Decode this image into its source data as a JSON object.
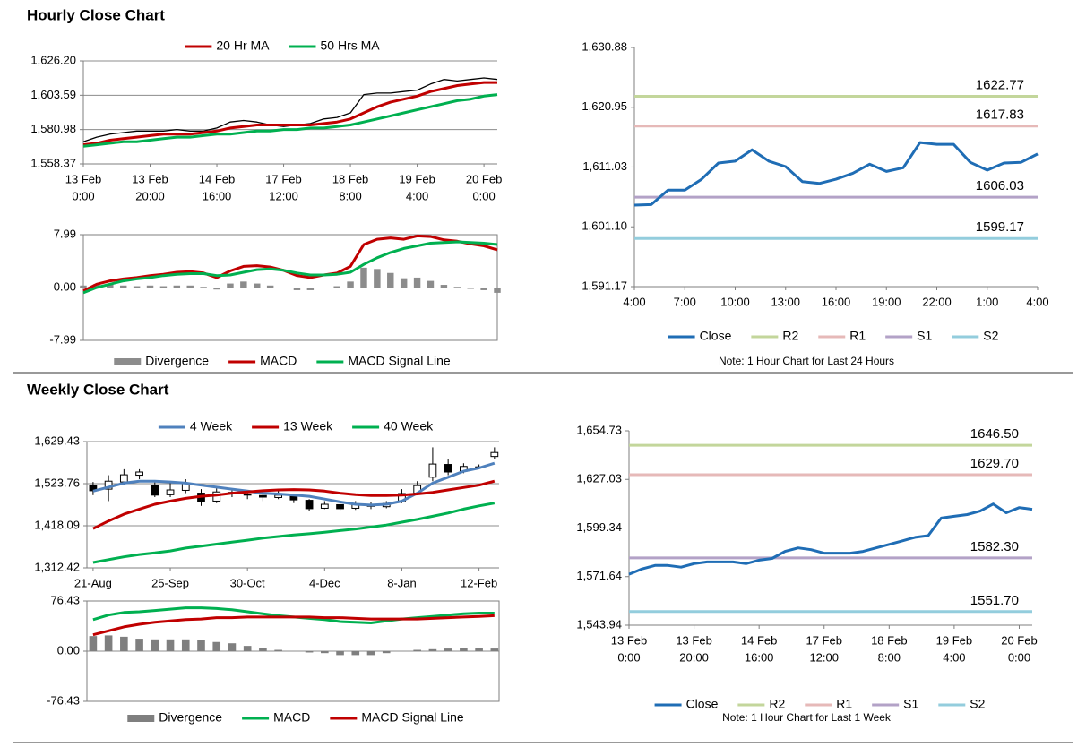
{
  "headings": [
    "Hourly Close Chart",
    "Weekly Close Chart"
  ],
  "chart_data": [
    {
      "type": "line",
      "xlim": [
        0,
        31
      ],
      "ylim": [
        1558.37,
        1626.2
      ],
      "grid": true,
      "yticks": [
        {
          "value": 1558.37,
          "label": "1,558.37"
        },
        {
          "value": 1580.98,
          "label": "1,580.98"
        },
        {
          "value": 1603.59,
          "label": "1,603.59"
        },
        {
          "value": 1626.2,
          "label": "1,626.20"
        }
      ],
      "xticks": [
        {
          "value": 0,
          "label": [
            "13 Feb",
            "0:00"
          ]
        },
        {
          "value": 5,
          "label": [
            "13 Feb",
            "20:00"
          ]
        },
        {
          "value": 10,
          "label": [
            "14 Feb",
            "16:00"
          ]
        },
        {
          "value": 15,
          "label": [
            "17 Feb",
            "12:00"
          ]
        },
        {
          "value": 20,
          "label": [
            "18 Feb",
            "8:00"
          ]
        },
        {
          "value": 25,
          "label": [
            "19 Feb",
            "4:00"
          ]
        },
        {
          "value": 30,
          "label": [
            "20 Feb",
            "0:00"
          ]
        }
      ],
      "series": [
        {
          "color": "#000000",
          "values": [
            1573,
            1576,
            1578,
            1579,
            1580,
            1580,
            1580,
            1581,
            1580,
            1580,
            1582,
            1586,
            1587,
            1586,
            1584,
            1583,
            1584,
            1585,
            1588,
            1589,
            1592,
            1604,
            1605,
            1605,
            1606,
            1607,
            1611,
            1614,
            1613,
            1614,
            1615,
            1614
          ]
        },
        {
          "name": "20 Hr MA",
          "color": "#c00000",
          "values": [
            1571,
            1572,
            1574,
            1575,
            1576,
            1577,
            1578,
            1578,
            1578,
            1579,
            1580,
            1582,
            1583,
            1584,
            1584,
            1584,
            1584,
            1584,
            1585,
            1586,
            1588,
            1592,
            1596,
            1599,
            1601,
            1603,
            1606,
            1608,
            1610,
            1611,
            1612,
            1612
          ]
        },
        {
          "name": "50 Hrs MA",
          "color": "#00b050",
          "values": [
            1570,
            1571,
            1572,
            1573,
            1573,
            1574,
            1575,
            1576,
            1576,
            1577,
            1578,
            1578,
            1579,
            1580,
            1580,
            1581,
            1581,
            1582,
            1582,
            1583,
            1584,
            1586,
            1588,
            1590,
            1592,
            1594,
            1596,
            1598,
            1600,
            1601,
            1603,
            1604
          ]
        }
      ]
    },
    {
      "type": "combo",
      "xlim": [
        0,
        31
      ],
      "ylim": [
        -7.99,
        7.99
      ],
      "grid": false,
      "frame": true,
      "yticks": [
        -7.99,
        {
          "value": 0,
          "label": "0.00"
        },
        7.99
      ],
      "series": [
        {
          "name": "Divergence",
          "kind": "bar",
          "color": "#8c8c8c",
          "values": [
            0.3,
            0.5,
            0.5,
            0.3,
            0.2,
            0.3,
            0.2,
            0.3,
            0.3,
            0.1,
            -0.3,
            0.6,
            0.9,
            0.6,
            0.3,
            0,
            -0.4,
            -0.4,
            0,
            0.2,
            0.9,
            3,
            2.8,
            2.2,
            1.4,
            1.5,
            1,
            0.4,
            0.1,
            -0.2,
            -0.4,
            -0.8
          ]
        },
        {
          "name": "MACD",
          "kind": "line",
          "color": "#c00000",
          "values": [
            -0.5,
            0.5,
            1,
            1.3,
            1.5,
            1.8,
            2,
            2.3,
            2.4,
            2.2,
            1.5,
            2.5,
            3.2,
            3.3,
            3.1,
            2.6,
            1.8,
            1.5,
            1.9,
            2.2,
            3.2,
            6.5,
            7.3,
            7.5,
            7.3,
            7.8,
            7.7,
            7.2,
            7,
            6.6,
            6.3,
            5.7
          ]
        },
        {
          "name": "MACD Signal Line",
          "kind": "line",
          "color": "#00b050",
          "values": [
            -0.8,
            0,
            0.5,
            1,
            1.3,
            1.5,
            1.8,
            2,
            2.1,
            2.1,
            1.8,
            1.9,
            2.3,
            2.7,
            2.8,
            2.6,
            2.2,
            1.9,
            1.9,
            2,
            2.3,
            3.5,
            4.5,
            5.3,
            5.9,
            6.3,
            6.7,
            6.8,
            6.9,
            6.8,
            6.7,
            6.5
          ]
        }
      ]
    },
    {
      "type": "levels",
      "xlim": [
        0,
        24
      ],
      "ylim": [
        1591.17,
        1630.88
      ],
      "grid": false,
      "yticks": [
        {
          "value": 1591.17,
          "label": "1,591.17"
        },
        {
          "value": 1601.1,
          "label": "1,601.10"
        },
        {
          "value": 1611.03,
          "label": "1,611.03"
        },
        {
          "value": 1620.95,
          "label": "1,620.95"
        },
        {
          "value": 1630.88,
          "label": "1,630.88"
        }
      ],
      "xticks": [
        {
          "value": 0,
          "label": "4:00"
        },
        {
          "value": 3,
          "label": "7:00"
        },
        {
          "value": 6,
          "label": "10:00"
        },
        {
          "value": 9,
          "label": "13:00"
        },
        {
          "value": 12,
          "label": "16:00"
        },
        {
          "value": 15,
          "label": "19:00"
        },
        {
          "value": 18,
          "label": "22:00"
        },
        {
          "value": 21,
          "label": "1:00"
        },
        {
          "value": 24,
          "label": "4:00"
        }
      ],
      "series": [
        {
          "name": "Close",
          "color": "#1f6db5",
          "values": [
            1604.7,
            1604.8,
            1607.2,
            1607.2,
            1609,
            1611.7,
            1612,
            1613.9,
            1612,
            1611.1,
            1608.6,
            1608.3,
            1609,
            1610,
            1611.5,
            1610.3,
            1610.9,
            1615.1,
            1614.8,
            1614.8,
            1611.8,
            1610.5,
            1611.7,
            1611.8,
            1613.2
          ]
        }
      ],
      "levels": [
        {
          "name": "R2",
          "color": "#c3d69b",
          "value": 1622.77
        },
        {
          "name": "R1",
          "color": "#e6b9b8",
          "value": 1617.83
        },
        {
          "name": "S1",
          "color": "#b3a2c7",
          "value": 1606.03
        },
        {
          "name": "S2",
          "color": "#93cddd",
          "value": 1599.17
        }
      ],
      "note": "Note: 1 Hour Chart for Last 24 Hours"
    },
    {
      "type": "candlestick",
      "xlim": [
        -0.4,
        26.3
      ],
      "ylim": [
        1312.42,
        1629.43
      ],
      "grid": true,
      "yticks": [
        {
          "value": 1312.42,
          "label": "1,312.42"
        },
        {
          "value": 1418.09,
          "label": "1,418.09"
        },
        {
          "value": 1523.76,
          "label": "1,523.76"
        },
        {
          "value": 1629.43,
          "label": "1,629.43"
        }
      ],
      "xticks": [
        {
          "value": 0,
          "label": "21-Aug"
        },
        {
          "value": 5,
          "label": "25-Sep"
        },
        {
          "value": 10,
          "label": "30-Oct"
        },
        {
          "value": 15,
          "label": "4-Dec"
        },
        {
          "value": 20,
          "label": "8-Jan"
        },
        {
          "value": 25,
          "label": "12-Feb"
        }
      ],
      "candles": {
        "open": [
          1520,
          1510,
          1528,
          1545,
          1520,
          1496,
          1507,
          1500,
          1480,
          1502,
          1498,
          1494,
          1489,
          1494,
          1482,
          1462,
          1471,
          1462,
          1471,
          1466,
          1478,
          1500,
          1540,
          1572,
          1555,
          1566,
          1592
        ],
        "high": [
          1528,
          1545,
          1560,
          1560,
          1528,
          1530,
          1535,
          1510,
          1512,
          1508,
          1505,
          1500,
          1505,
          1498,
          1485,
          1480,
          1475,
          1480,
          1478,
          1480,
          1510,
          1530,
          1615,
          1585,
          1575,
          1572,
          1615
        ],
        "low": [
          1495,
          1480,
          1520,
          1535,
          1490,
          1490,
          1500,
          1468,
          1475,
          1490,
          1485,
          1480,
          1485,
          1475,
          1455,
          1460,
          1455,
          1458,
          1460,
          1462,
          1475,
          1495,
          1530,
          1545,
          1550,
          1560,
          1585
        ],
        "close": [
          1506,
          1530,
          1546,
          1553,
          1495,
          1508,
          1524,
          1479,
          1503,
          1499,
          1495,
          1490,
          1495,
          1483,
          1461,
          1472,
          1461,
          1472,
          1467,
          1474,
          1499,
          1519,
          1573,
          1553,
          1567,
          1566,
          1602
        ]
      },
      "series": [
        {
          "name": "4 Week",
          "color": "#4f81bd",
          "values": [
            1505,
            1515,
            1525,
            1530,
            1530,
            1528,
            1525,
            1520,
            1515,
            1510,
            1505,
            1500,
            1498,
            1495,
            1492,
            1485,
            1478,
            1472,
            1470,
            1472,
            1480,
            1500,
            1525,
            1540,
            1555,
            1563,
            1575
          ]
        },
        {
          "name": "13 Week",
          "color": "#c00000",
          "values": [
            1411,
            1430,
            1447,
            1460,
            1472,
            1480,
            1487,
            1492,
            1495,
            1500,
            1503,
            1506,
            1508,
            1509,
            1508,
            1505,
            1500,
            1496,
            1494,
            1494,
            1495,
            1498,
            1502,
            1508,
            1514,
            1520,
            1530
          ]
        },
        {
          "name": "40 Week",
          "color": "#00b050",
          "values": [
            1326,
            1333,
            1340,
            1346,
            1350,
            1355,
            1362,
            1367,
            1372,
            1377,
            1382,
            1387,
            1391,
            1395,
            1398,
            1402,
            1406,
            1410,
            1415,
            1420,
            1427,
            1434,
            1442,
            1450,
            1460,
            1468,
            1475
          ]
        }
      ]
    },
    {
      "type": "combo",
      "xlim": [
        -0.4,
        26.3
      ],
      "ylim": [
        -76.43,
        76.43
      ],
      "grid": true,
      "frame": true,
      "yticks": [
        -76.43,
        {
          "value": 0,
          "label": "0.00"
        },
        76.43
      ],
      "series": [
        {
          "name": "Divergence",
          "kind": "bar",
          "color": "#7f7f7f",
          "values": [
            23,
            24,
            22,
            19,
            18,
            18,
            18,
            17,
            14,
            12,
            8,
            5,
            2,
            0,
            -2,
            -3,
            -6,
            -6,
            -6,
            -3,
            0,
            2,
            3,
            4,
            5,
            5,
            4
          ]
        },
        {
          "name": "MACD",
          "kind": "line",
          "color": "#00b050",
          "values": [
            48,
            55,
            59,
            60,
            62,
            64,
            66,
            66,
            65,
            63,
            60,
            57,
            54,
            52,
            50,
            48,
            45,
            44,
            43,
            46,
            49,
            51,
            53,
            55,
            57,
            58,
            58
          ]
        },
        {
          "name": "MACD Signal Line",
          "kind": "line",
          "color": "#c00000",
          "values": [
            25,
            31,
            37,
            41,
            44,
            46,
            48,
            49,
            51,
            51,
            52,
            52,
            52,
            52,
            52,
            51,
            51,
            50,
            49,
            49,
            49,
            49,
            50,
            51,
            52,
            53,
            54
          ]
        }
      ]
    },
    {
      "type": "levels",
      "xlim": [
        0,
        31
      ],
      "ylim": [
        1543.94,
        1654.73
      ],
      "grid": false,
      "yticks": [
        {
          "value": 1543.94,
          "label": "1,543.94"
        },
        {
          "value": 1571.64,
          "label": "1,571.64"
        },
        {
          "value": 1599.34,
          "label": "1,599.34"
        },
        {
          "value": 1627.03,
          "label": "1,627.03"
        },
        {
          "value": 1654.73,
          "label": "1,654.73"
        }
      ],
      "xticks": [
        {
          "value": 0,
          "label": [
            "13 Feb",
            "0:00"
          ]
        },
        {
          "value": 5,
          "label": [
            "13 Feb",
            "20:00"
          ]
        },
        {
          "value": 10,
          "label": [
            "14 Feb",
            "16:00"
          ]
        },
        {
          "value": 15,
          "label": [
            "17 Feb",
            "12:00"
          ]
        },
        {
          "value": 20,
          "label": [
            "18 Feb",
            "8:00"
          ]
        },
        {
          "value": 25,
          "label": [
            "19 Feb",
            "4:00"
          ]
        },
        {
          "value": 30,
          "label": [
            "20 Feb",
            "0:00"
          ]
        }
      ],
      "series": [
        {
          "name": "Close",
          "color": "#1f6db5",
          "values": [
            1573,
            1576,
            1578,
            1578,
            1577,
            1579,
            1580,
            1580,
            1580,
            1579,
            1581,
            1582,
            1586,
            1588,
            1587,
            1585,
            1585,
            1585,
            1586,
            1588,
            1590,
            1592,
            1594,
            1595,
            1605,
            1606,
            1607,
            1609,
            1613,
            1608,
            1611,
            1610
          ]
        }
      ],
      "levels": [
        {
          "name": "R2",
          "color": "#c3d69b",
          "value": 1646.5,
          "label": "1646.50"
        },
        {
          "name": "R1",
          "color": "#e6b9b8",
          "value": 1629.7,
          "label": "1629.70"
        },
        {
          "name": "S1",
          "color": "#b3a2c7",
          "value": 1582.3,
          "label": "1582.30"
        },
        {
          "name": "S2",
          "color": "#93cddd",
          "value": 1551.7,
          "label": "1551.70"
        }
      ],
      "note": "Note: 1 Hour Chart for Last 1 Week"
    }
  ]
}
